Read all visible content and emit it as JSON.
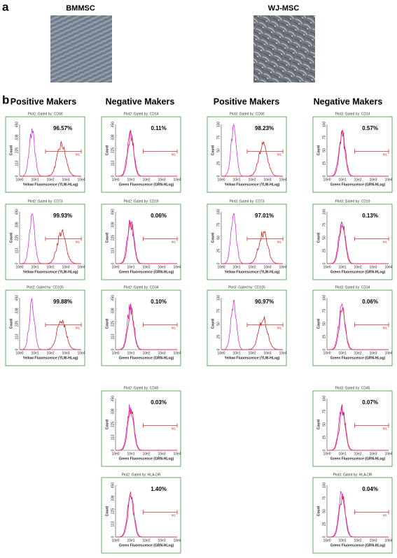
{
  "figure": {
    "panel_a": {
      "label": "a",
      "images": [
        {
          "label": "BMMSC"
        },
        {
          "label": "WJ-MSC"
        }
      ]
    },
    "panel_b": {
      "label": "b",
      "columns": [
        {
          "header": "Positive Makers",
          "ylabel": "Count",
          "xlabel": "Yellow Fluorescence (YLW-HLog)",
          "marker": "M1",
          "yticks": [
            0,
            113,
            225,
            338,
            450
          ],
          "xticks": [
            "10e0",
            "10e1",
            "10e2",
            "10e3",
            "10e4"
          ],
          "plots": [
            {
              "title": "Plot2:  Gated by: CD90",
              "percent": "96.57%"
            },
            {
              "title": "Plot2:  Gated by: CD73",
              "percent": "99.93%"
            },
            {
              "title": "Plot2:  Gated by: CD105",
              "percent": "99.88%"
            }
          ]
        },
        {
          "header": "Negative Makers",
          "ylabel": "Count",
          "xlabel": "Green Fluorescence (GRN-HLog)",
          "marker": "M1",
          "yticks": [
            0,
            113,
            225,
            338,
            450
          ],
          "xticks": [
            "10e0",
            "10e1",
            "10e2",
            "10e3",
            "10e4"
          ],
          "plots": [
            {
              "title": "Plot2:  Gated by: CD14",
              "percent": "0.11%"
            },
            {
              "title": "Plot2:  Gated by: CD19",
              "percent": "0.06%"
            },
            {
              "title": "Plot2:  Gated by: CD34",
              "percent": "0.10%"
            },
            {
              "title": "Plot2:  Gated by: CD45",
              "percent": "0.03%"
            },
            {
              "title": "Plot2:  Gated by: HLA-DR",
              "percent": "1.40%"
            }
          ]
        },
        {
          "header": "Positive Makers",
          "ylabel": "Count",
          "xlabel": "Yellow Fluorescence (YLW-HLog)",
          "marker": "M1",
          "yticks": [
            0,
            25,
            50,
            75,
            100
          ],
          "xticks": [
            "10e0",
            "10e1",
            "10e2",
            "10e3",
            "10e4"
          ],
          "plots": [
            {
              "title": "Plot3:  Gated by: CD90",
              "percent": "98.23%"
            },
            {
              "title": "Plot3:  Gated by: CD73",
              "percent": "97.01%"
            },
            {
              "title": "Plot3:  Gated by: CD105",
              "percent": "90.97%"
            }
          ]
        },
        {
          "header": "Negative Makers",
          "ylabel": "Count",
          "xlabel": "Green Fluorescence (GRN-HLog)",
          "marker": "M1",
          "yticks": [
            0,
            25,
            50,
            75,
            100
          ],
          "xticks": [
            "10e0",
            "10e1",
            "10e2",
            "10e3",
            "10e4"
          ],
          "plots": [
            {
              "title": "Plot3:  Gated by: CD14",
              "percent": "0.57%"
            },
            {
              "title": "Plot3:  Gated by: CD19",
              "percent": "0.13%"
            },
            {
              "title": "Plot3:  Gated by: CD34",
              "percent": "0.06%"
            },
            {
              "title": "Plot3:  Gated by: CD45",
              "percent": "0.07%"
            },
            {
              "title": "Plot3:  Gated by: HLA-DR",
              "percent": "0.04%"
            }
          ]
        }
      ]
    }
  }
}
